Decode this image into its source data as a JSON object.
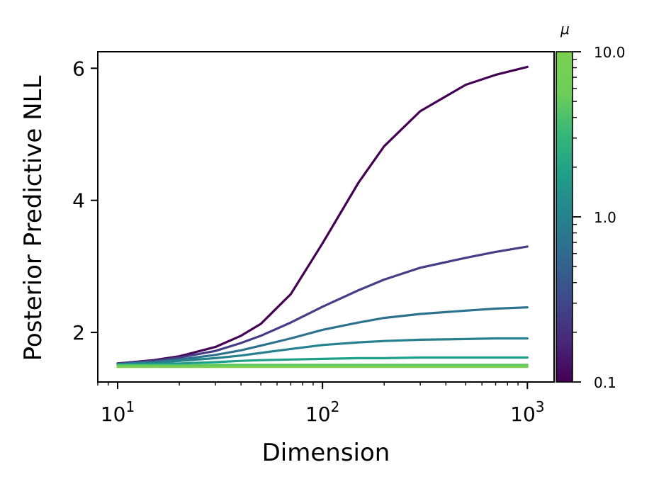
{
  "chart_data": {
    "type": "line",
    "xlabel": "Dimension",
    "ylabel": "Posterior Predictive NLL",
    "xscale": "log",
    "xlim": [
      8,
      1350
    ],
    "ylim": [
      1.25,
      6.25
    ],
    "x_ticks": [
      {
        "value": 10,
        "base": "10",
        "exp": "1"
      },
      {
        "value": 100,
        "base": "10",
        "exp": "2"
      },
      {
        "value": 1000,
        "base": "10",
        "exp": "3"
      }
    ],
    "y_ticks": [
      {
        "value": 2,
        "label": "2"
      },
      {
        "value": 4,
        "label": "4"
      },
      {
        "value": 6,
        "label": "6"
      }
    ],
    "x": [
      10,
      15,
      20,
      30,
      40,
      50,
      70,
      100,
      150,
      200,
      300,
      500,
      700,
      1000
    ],
    "series": [
      {
        "mu": 0.1,
        "color": "#440154",
        "values": [
          1.53,
          1.58,
          1.64,
          1.78,
          1.95,
          2.13,
          2.58,
          3.35,
          4.27,
          4.82,
          5.35,
          5.75,
          5.9,
          6.02
        ]
      },
      {
        "mu": 0.2,
        "color": "#433e85",
        "values": [
          1.53,
          1.57,
          1.62,
          1.72,
          1.84,
          1.95,
          2.15,
          2.39,
          2.64,
          2.8,
          2.98,
          3.13,
          3.22,
          3.3
        ]
      },
      {
        "mu": 0.4,
        "color": "#2c728e",
        "values": [
          1.52,
          1.55,
          1.59,
          1.66,
          1.73,
          1.8,
          1.91,
          2.04,
          2.15,
          2.22,
          2.28,
          2.33,
          2.36,
          2.38
        ]
      },
      {
        "mu": 1.0,
        "color": "#27808e",
        "values": [
          1.52,
          1.54,
          1.57,
          1.61,
          1.65,
          1.69,
          1.75,
          1.81,
          1.85,
          1.87,
          1.89,
          1.9,
          1.91,
          1.91
        ]
      },
      {
        "mu": 2.5,
        "color": "#1f9e89",
        "values": [
          1.51,
          1.52,
          1.53,
          1.55,
          1.57,
          1.58,
          1.59,
          1.6,
          1.61,
          1.61,
          1.62,
          1.62,
          1.62,
          1.62
        ]
      },
      {
        "mu": 5.0,
        "color": "#5ec962",
        "values": [
          1.5,
          1.5,
          1.5,
          1.51,
          1.51,
          1.51,
          1.51,
          1.51,
          1.51,
          1.51,
          1.51,
          1.51,
          1.51,
          1.51
        ]
      },
      {
        "mu": 10.0,
        "color": "#7ad151",
        "values": [
          1.48,
          1.48,
          1.48,
          1.48,
          1.48,
          1.48,
          1.48,
          1.48,
          1.48,
          1.48,
          1.48,
          1.48,
          1.48,
          1.48
        ]
      }
    ],
    "colorbar": {
      "label": "μ",
      "scale": "log",
      "range": [
        0.1,
        10.0
      ],
      "ticks": [
        {
          "value": 0.1,
          "label": "0.1"
        },
        {
          "value": 1.0,
          "label": "1.0"
        },
        {
          "value": 10.0,
          "label": "10.0"
        }
      ],
      "colormap": [
        "#440154",
        "#482878",
        "#3e4a89",
        "#31688e",
        "#26828e",
        "#1f9e89",
        "#35b779",
        "#6ece58",
        "#7ad151"
      ]
    },
    "grid": false,
    "legend": "colorbar-right"
  }
}
